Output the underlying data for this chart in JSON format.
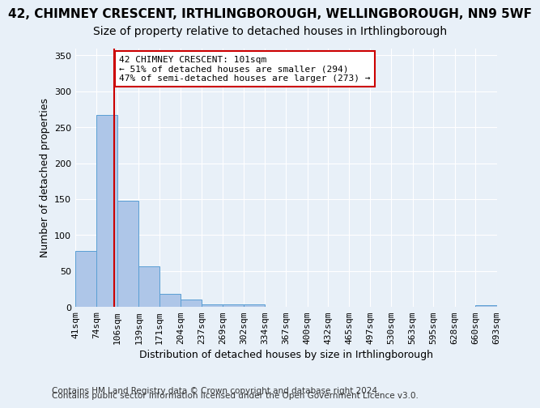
{
  "title": "42, CHIMNEY CRESCENT, IRTHLINGBOROUGH, WELLINGBOROUGH, NN9 5WF",
  "subtitle": "Size of property relative to detached houses in Irthlingborough",
  "xlabel": "Distribution of detached houses by size in Irthlingborough",
  "ylabel": "Number of detached properties",
  "footer_line1": "Contains HM Land Registry data © Crown copyright and database right 2024.",
  "footer_line2": "Contains public sector information licensed under the Open Government Licence v3.0.",
  "bar_edges": [
    41,
    74,
    106,
    139,
    171,
    204,
    237,
    269,
    302,
    334,
    367,
    400,
    432,
    465,
    497,
    530,
    563,
    595,
    628,
    660,
    693
  ],
  "bar_heights": [
    78,
    267,
    148,
    57,
    18,
    10,
    4,
    4,
    4,
    0,
    0,
    0,
    0,
    0,
    0,
    0,
    0,
    0,
    0,
    3
  ],
  "bar_color": "#aec6e8",
  "bar_edgecolor": "#5a9fd4",
  "property_size": 101,
  "red_line_color": "#cc0000",
  "annotation_text": "42 CHIMNEY CRESCENT: 101sqm\n← 51% of detached houses are smaller (294)\n47% of semi-detached houses are larger (273) →",
  "annotation_box_color": "#ffffff",
  "annotation_box_edgecolor": "#cc0000",
  "ylim": [
    0,
    360
  ],
  "yticks": [
    0,
    50,
    100,
    150,
    200,
    250,
    300,
    350
  ],
  "bg_color": "#e8f0f8",
  "grid_color": "#ffffff",
  "title_fontsize": 11,
  "subtitle_fontsize": 10,
  "axis_label_fontsize": 9,
  "tick_fontsize": 8,
  "footer_fontsize": 7.5
}
